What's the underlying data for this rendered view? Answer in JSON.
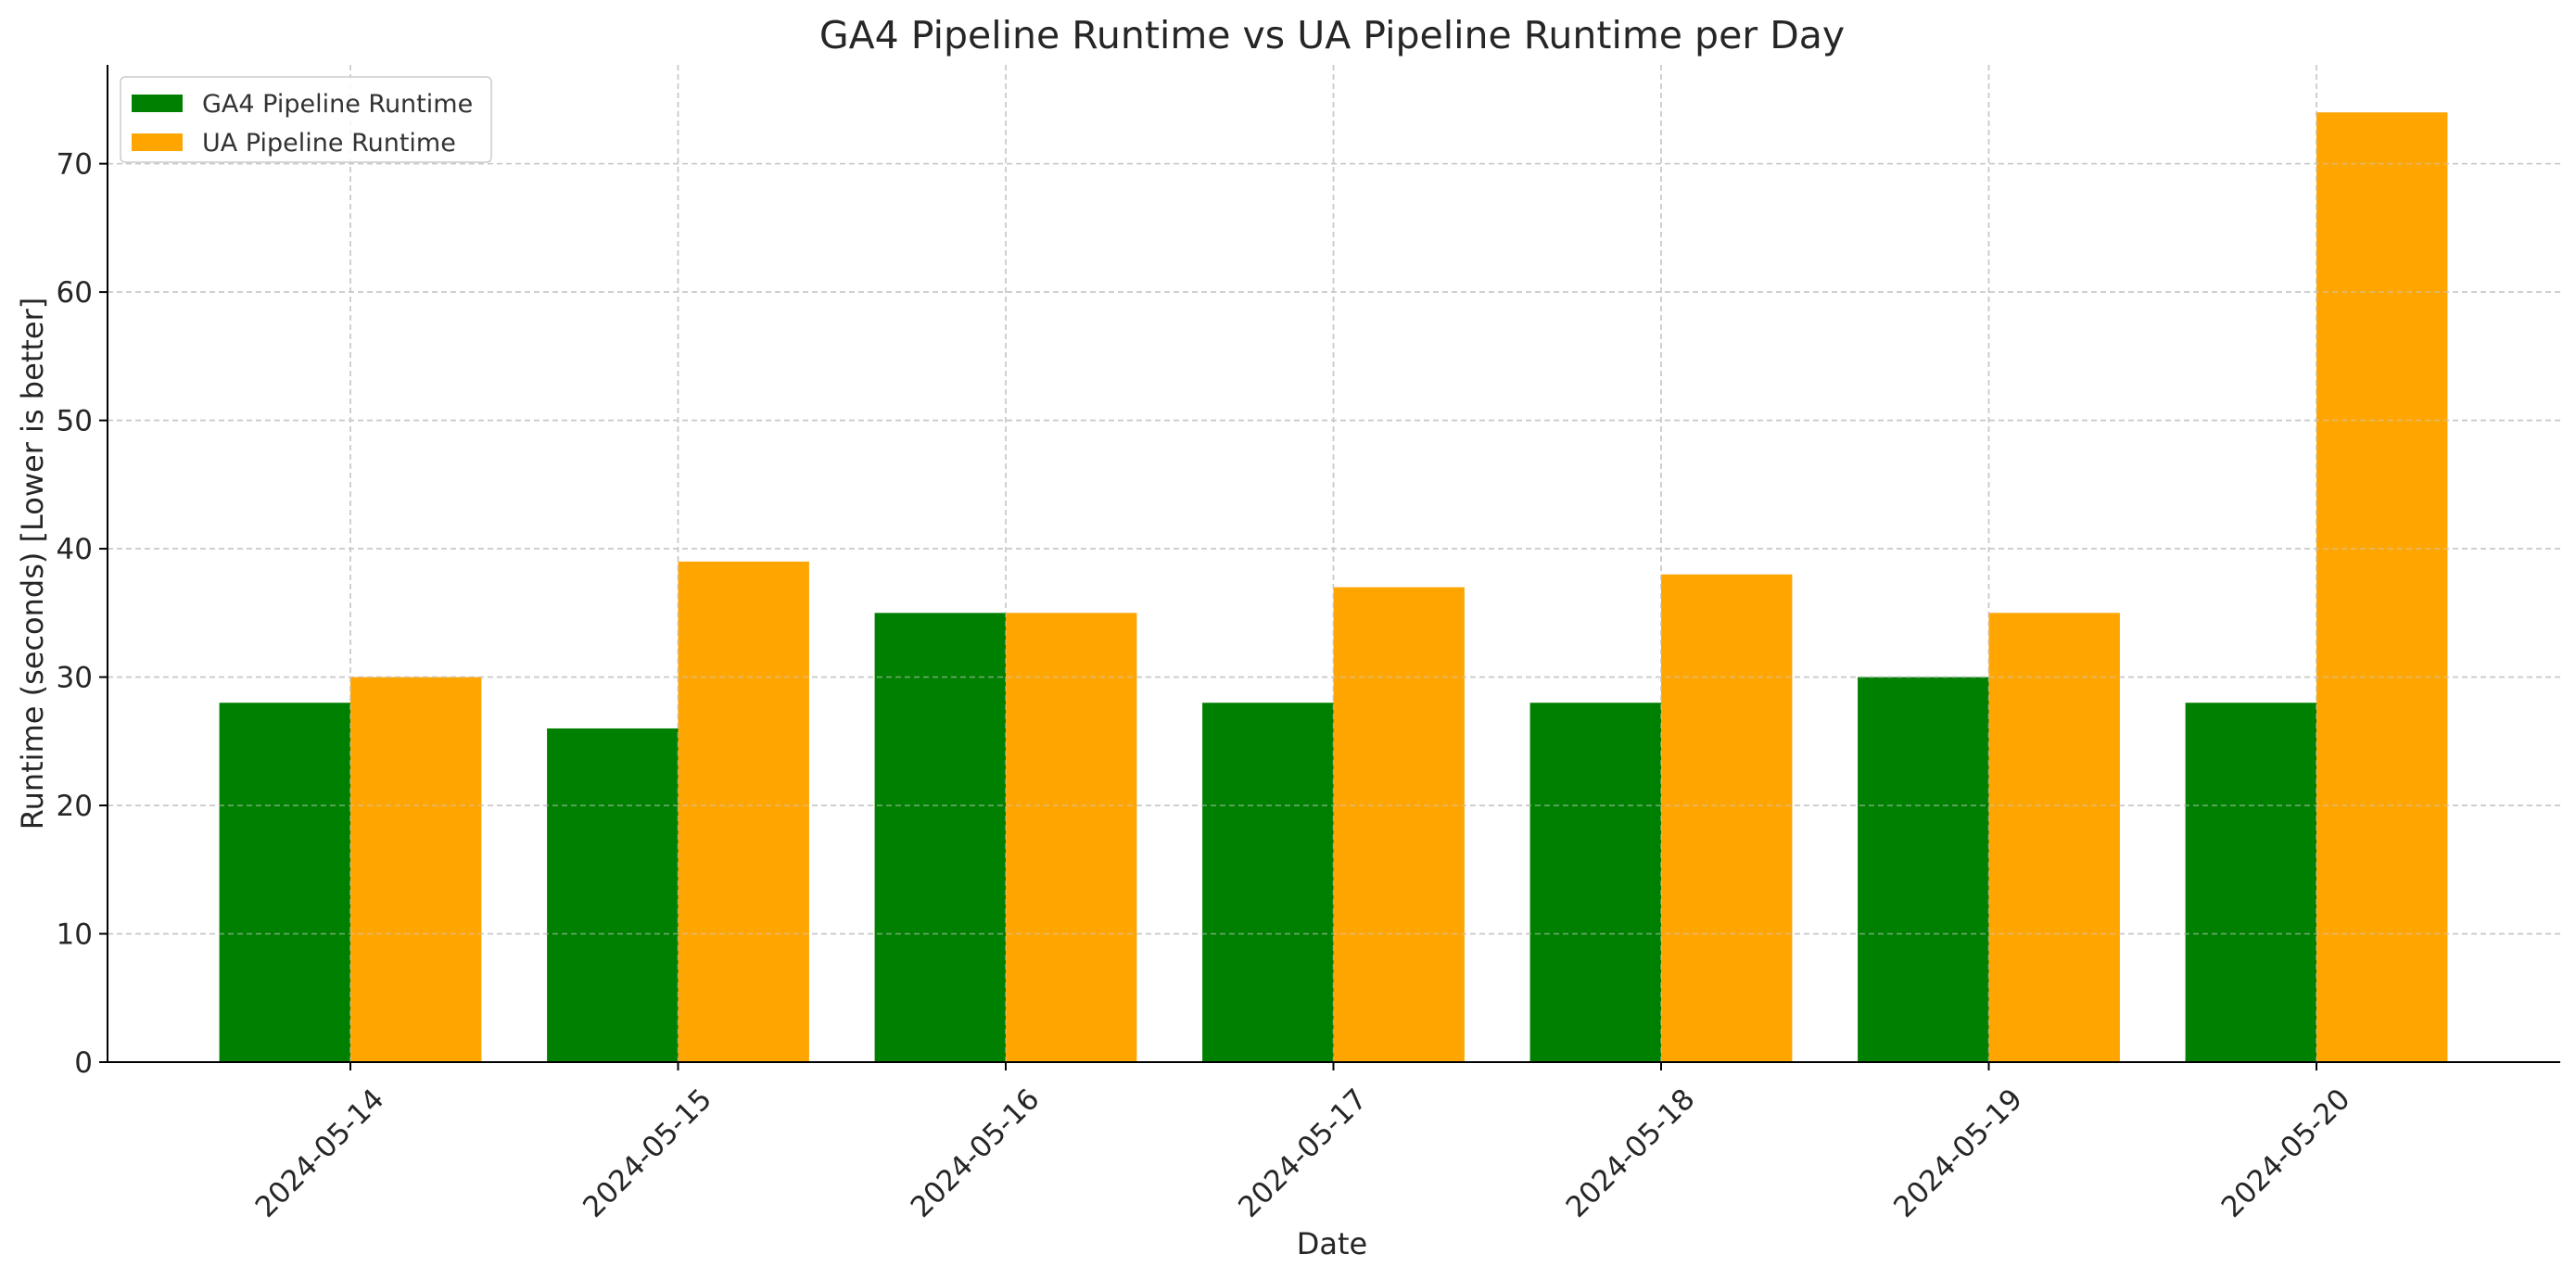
{
  "chart_data": {
    "type": "bar",
    "title": "GA4 Pipeline Runtime vs UA Pipeline Runtime per Day",
    "xlabel": "Date",
    "ylabel": "Runtime (seconds) [Lower is better]",
    "categories": [
      "2024-05-14",
      "2024-05-15",
      "2024-05-16",
      "2024-05-17",
      "2024-05-18",
      "2024-05-19",
      "2024-05-20"
    ],
    "series": [
      {
        "name": "GA4 Pipeline Runtime",
        "color": "#008000",
        "values": [
          28,
          26,
          35,
          28,
          28,
          30,
          28
        ]
      },
      {
        "name": "UA Pipeline Runtime",
        "color": "#FFA500",
        "values": [
          30,
          39,
          35,
          37,
          38,
          35,
          74
        ]
      }
    ],
    "ylim": [
      0,
      77.7
    ],
    "yticks": [
      0,
      10,
      20,
      30,
      40,
      50,
      60,
      70
    ],
    "grid": true,
    "legend": "top-left"
  }
}
